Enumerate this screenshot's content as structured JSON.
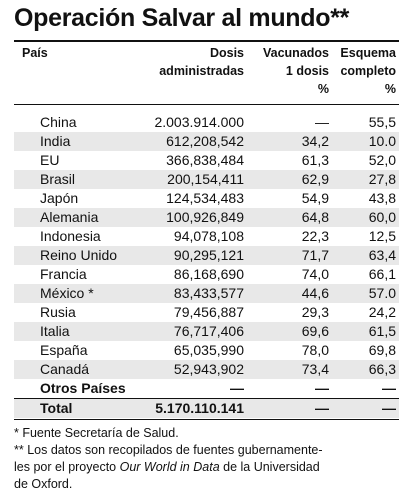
{
  "title": "Operación Salvar al mundo**",
  "headers": {
    "country": "País",
    "doses_line1": "Dosis",
    "doses_line2": "administradas",
    "vac1_line1": "Vacunados",
    "vac1_line2": "1 dosis",
    "vac1_unit": "%",
    "full_line1": "Esquema",
    "full_line2": "completo",
    "full_unit": "%"
  },
  "rows": [
    {
      "country": "China",
      "doses": "2.003.914.000",
      "vac1": "—",
      "full": "55,5"
    },
    {
      "country": "India",
      "doses": "612,208,542",
      "vac1": "34,2",
      "full": "10.0"
    },
    {
      "country": "EU",
      "doses": "366,838,484",
      "vac1": "61,3",
      "full": "52,0"
    },
    {
      "country": "Brasil",
      "doses": "200,154,411",
      "vac1": "62,9",
      "full": "27,8"
    },
    {
      "country": "Japón",
      "doses": "124,534,483",
      "vac1": "54,9",
      "full": "43,8"
    },
    {
      "country": "Alemania",
      "doses": "100,926,849",
      "vac1": "64,8",
      "full": "60,0"
    },
    {
      "country": "Indonesia",
      "doses": "94,078,108",
      "vac1": "22,3",
      "full": "12,5"
    },
    {
      "country": "Reino Unido",
      "doses": "90,295,121",
      "vac1": "71,7",
      "full": "63,4"
    },
    {
      "country": "Francia",
      "doses": "86,168,690",
      "vac1": "74,0",
      "full": "66,1"
    },
    {
      "country": "México *",
      "doses": "83,433,577",
      "vac1": "44,6",
      "full": "57.0"
    },
    {
      "country": "Rusia",
      "doses": "79,456,887",
      "vac1": "29,3",
      "full": "24,2"
    },
    {
      "country": "Italia",
      "doses": "76,717,406",
      "vac1": "69,6",
      "full": "61,5"
    },
    {
      "country": "España",
      "doses": "65,035,990",
      "vac1": "78,0",
      "full": "69,8"
    },
    {
      "country": "Canadá",
      "doses": "52,943,902",
      "vac1": "73,4",
      "full": "66,3"
    }
  ],
  "others": {
    "country": "Otros Países",
    "doses": "—",
    "vac1": "—",
    "full": "—"
  },
  "total": {
    "country": "Total",
    "doses": "5.170.110.141",
    "vac1": "—",
    "full": "—"
  },
  "notes": {
    "note1": "* Fuente Secretaría de Salud.",
    "note2": "** Los datos son recopilados de fuentes gubernamente-",
    "note3_pre": "les por el proyecto ",
    "note3_em": "Our World in Data",
    "note3_post": " de la Universidad",
    "note4": "de Oxford."
  }
}
